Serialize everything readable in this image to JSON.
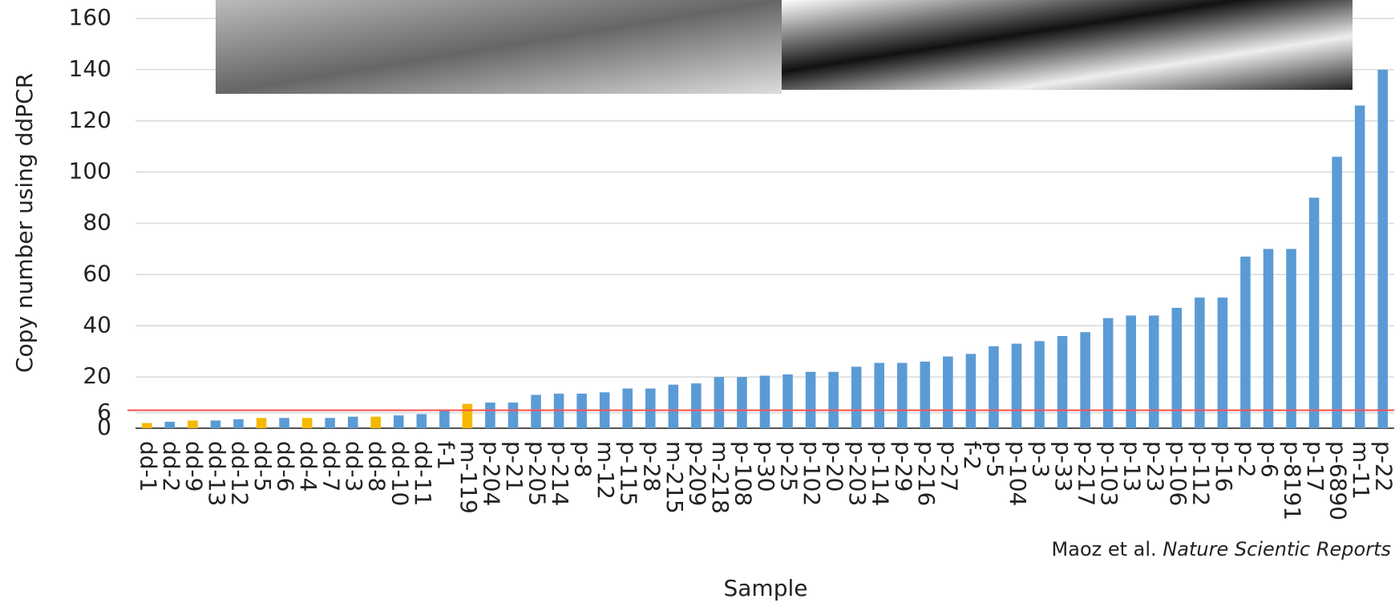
{
  "chart_data": {
    "type": "bar",
    "y_label": "Copy number using ddPCR",
    "x_label": "Sample",
    "annotation_authors": "Maoz et al.",
    "annotation_journal": "Nature Scientic Reports",
    "categories": [
      "dd-1",
      "dd-2",
      "dd-9",
      "dd-13",
      "dd-12",
      "dd-5",
      "dd-6",
      "dd-4",
      "dd-7",
      "dd-3",
      "dd-8",
      "dd-10",
      "dd-11",
      "f-1",
      "m-119",
      "p-204",
      "p-21",
      "p-205",
      "p-214",
      "p-8",
      "m-12",
      "p-115",
      "p-28",
      "m-215",
      "p-209",
      "m-218",
      "p-108",
      "p-30",
      "p-25",
      "p-102",
      "p-20",
      "p-203",
      "p-114",
      "p-29",
      "p-216",
      "p-27",
      "f-2",
      "p-5",
      "p-104",
      "p-3",
      "p-33",
      "p-217",
      "p-103",
      "p-13",
      "p-23",
      "p-106",
      "p-112",
      "p-16",
      "p-2",
      "p-6",
      "p-8191",
      "p-17",
      "p-6890",
      "m-11",
      "p-22"
    ],
    "values": [
      2,
      2.5,
      3,
      3,
      3.5,
      4,
      4,
      4,
      4,
      4.5,
      4.5,
      5,
      5.5,
      7,
      9.5,
      10,
      10,
      13,
      13.5,
      13.5,
      14,
      15.5,
      15.5,
      17,
      17.5,
      20,
      20,
      20.5,
      21,
      22,
      22,
      24,
      25.5,
      25.5,
      26,
      28,
      29,
      32,
      33,
      34,
      36,
      37.5,
      43,
      44,
      44,
      47,
      51,
      51,
      67,
      70,
      70,
      90,
      106,
      126,
      140
    ],
    "colors": [
      "#f5b800",
      "#5b9bd5",
      "#f5b800",
      "#5b9bd5",
      "#5b9bd5",
      "#f5b800",
      "#5b9bd5",
      "#f5b800",
      "#5b9bd5",
      "#5b9bd5",
      "#f5b800",
      "#5b9bd5",
      "#5b9bd5",
      "#5b9bd5",
      "#f5b800",
      "#5b9bd5",
      "#5b9bd5",
      "#5b9bd5",
      "#5b9bd5",
      "#5b9bd5",
      "#5b9bd5",
      "#5b9bd5",
      "#5b9bd5",
      "#5b9bd5",
      "#5b9bd5",
      "#5b9bd5",
      "#5b9bd5",
      "#5b9bd5",
      "#5b9bd5",
      "#5b9bd5",
      "#5b9bd5",
      "#5b9bd5",
      "#5b9bd5",
      "#5b9bd5",
      "#5b9bd5",
      "#5b9bd5",
      "#5b9bd5",
      "#5b9bd5",
      "#5b9bd5",
      "#5b9bd5",
      "#5b9bd5",
      "#5b9bd5",
      "#5b9bd5",
      "#5b9bd5",
      "#5b9bd5",
      "#5b9bd5",
      "#5b9bd5",
      "#5b9bd5",
      "#5b9bd5",
      "#5b9bd5",
      "#5b9bd5",
      "#5b9bd5",
      "#5b9bd5",
      "#5b9bd5",
      "#5b9bd5"
    ],
    "threshold": 7,
    "threshold_color": "#ff5050",
    "ylim": [
      0,
      160
    ],
    "yticks": [
      0,
      6,
      20,
      40,
      60,
      80,
      100,
      120,
      140,
      160
    ],
    "grid": true
  }
}
